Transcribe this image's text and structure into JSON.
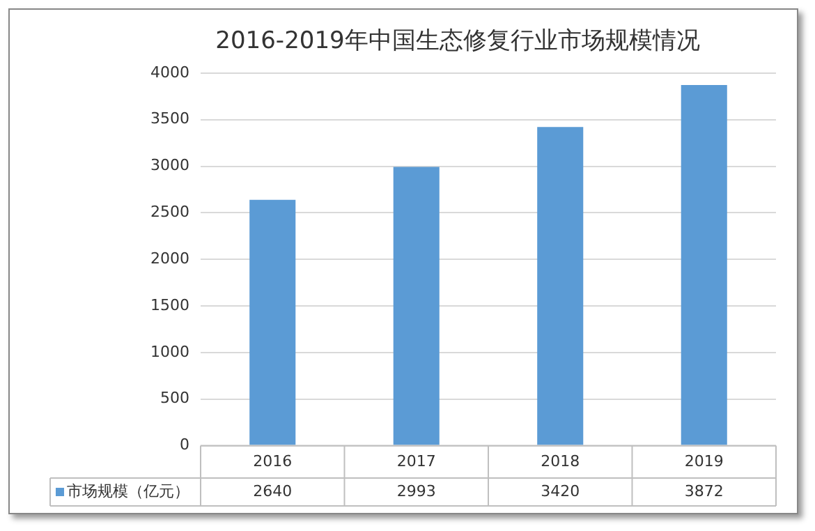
{
  "chart_data": {
    "type": "bar",
    "title": "2016-2019年中国生态修复行业市场规模情况",
    "categories": [
      "2016",
      "2017",
      "2018",
      "2019"
    ],
    "series": [
      {
        "name": "市场规模（亿元）",
        "color": "#5b9bd5",
        "values": [
          2640,
          2993,
          3420,
          3872
        ]
      }
    ],
    "ylim": [
      0,
      4000
    ],
    "yticks": [
      0,
      500,
      1000,
      1500,
      2000,
      2500,
      3000,
      3500,
      4000
    ],
    "grid": "y",
    "legend": "bottom left",
    "data_labels": true
  }
}
